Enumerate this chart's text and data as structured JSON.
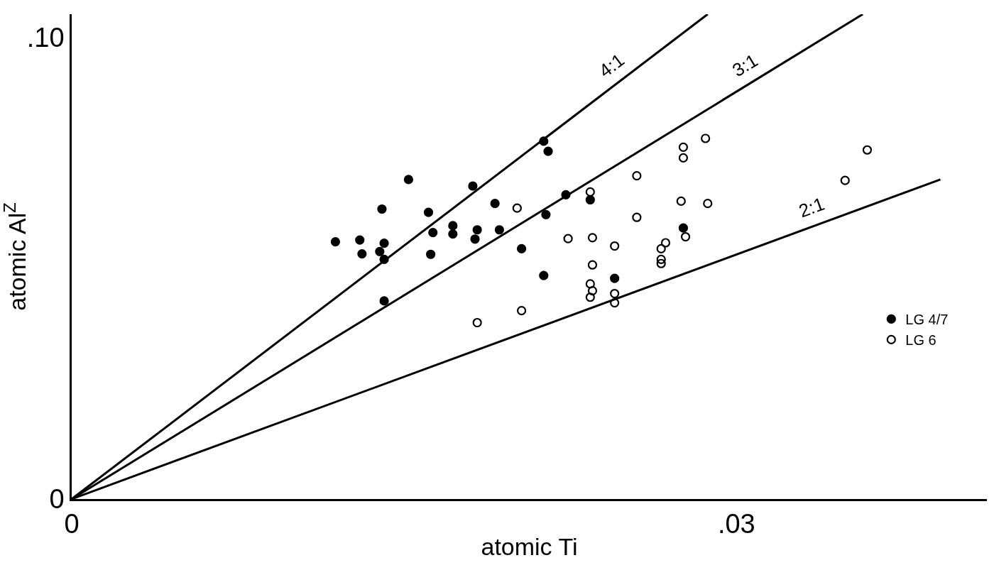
{
  "chart_data": {
    "type": "scatter",
    "xlabel": "atomic Ti",
    "ylabel": "atomic Al$^{Z}$",
    "xlim": [
      0,
      0.0413
    ],
    "ylim": [
      0,
      0.105
    ],
    "xticks": [
      0,
      {
        "value": 0.03,
        "label": ".03"
      }
    ],
    "yticks": [
      0,
      {
        "value": 0.1,
        "label": ".10"
      }
    ],
    "legend": "right",
    "series": [
      {
        "name": "LG 4/7",
        "color": "#000000",
        "marker": "circle",
        "x": [
          0.0119,
          0.013,
          0.0131,
          0.0141,
          0.0139,
          0.0141,
          0.014,
          0.0152,
          0.0161,
          0.0163,
          0.0162,
          0.0172,
          0.0172,
          0.0181,
          0.0183,
          0.0182,
          0.0191,
          0.0193,
          0.0213,
          0.0215,
          0.0223,
          0.0214,
          0.0203,
          0.0213,
          0.0141,
          0.0234,
          0.0276,
          0.0245
        ],
        "values": [
          0.0557,
          0.0561,
          0.0531,
          0.0554,
          0.0536,
          0.0519,
          0.0628,
          0.0692,
          0.0621,
          0.0577,
          0.053,
          0.0592,
          0.0574,
          0.0678,
          0.0583,
          0.0563,
          0.064,
          0.0583,
          0.0775,
          0.0753,
          0.0659,
          0.0616,
          0.0542,
          0.0484,
          0.0429,
          0.0648,
          0.0587,
          0.0478
        ]
      },
      {
        "name": "LG 6",
        "color": "#000000",
        "marker": "circle-open",
        "x": [
          0.0201,
          0.0224,
          0.0235,
          0.0235,
          0.0234,
          0.0235,
          0.0234,
          0.0203,
          0.0183,
          0.0234,
          0.0255,
          0.0276,
          0.0276,
          0.0286,
          0.0359,
          0.0349,
          0.0275,
          0.0287,
          0.0255,
          0.0245,
          0.0268,
          0.0266,
          0.0266,
          0.0266,
          0.0277,
          0.0245,
          0.0245
        ],
        "values": [
          0.063,
          0.0564,
          0.0566,
          0.0507,
          0.0466,
          0.0451,
          0.0437,
          0.0408,
          0.0382,
          0.0665,
          0.07,
          0.0762,
          0.0739,
          0.0781,
          0.0756,
          0.069,
          0.0645,
          0.064,
          0.061,
          0.0548,
          0.0555,
          0.0542,
          0.0519,
          0.051,
          0.0568,
          0.0445,
          0.0425
        ]
      },
      {
        "type": "line",
        "name": "4:1",
        "color": "#000000",
        "x": [
          0,
          0.0287
        ],
        "values": [
          0,
          0.105
        ]
      },
      {
        "type": "line",
        "name": "3:1",
        "color": "#000000",
        "x": [
          0,
          0.0357
        ],
        "values": [
          0,
          0.105
        ]
      },
      {
        "type": "line",
        "name": "2:1",
        "color": "#000000",
        "x": [
          0,
          0.0392
        ],
        "values": [
          0,
          0.0692
        ]
      }
    ]
  }
}
